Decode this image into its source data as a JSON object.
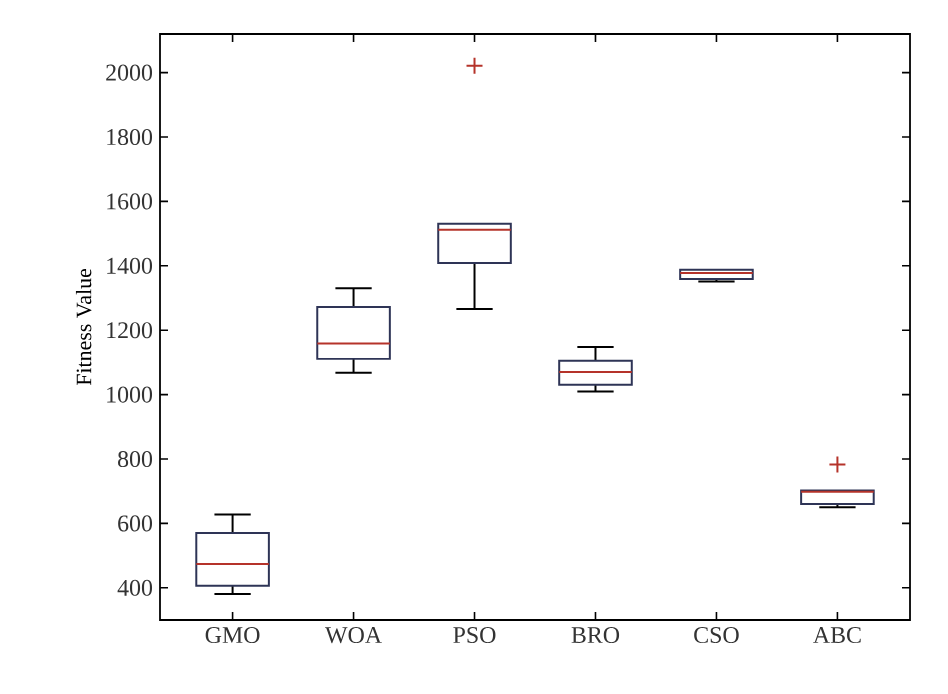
{
  "chart_data": {
    "type": "box",
    "ylabel": "Fitness Value",
    "categories": [
      "GMO",
      "WOA",
      "PSO",
      "BRO",
      "CSO",
      "ABC"
    ],
    "boxes": [
      {
        "low": 381,
        "q1": 406,
        "median": 474,
        "q3": 570,
        "high": 628
      },
      {
        "low": 1068,
        "q1": 1111,
        "median": 1159,
        "q3": 1272,
        "high": 1330
      },
      {
        "low": 1266,
        "q1": 1409,
        "median": 1512,
        "q3": 1531,
        "high": 1531,
        "outliers": [
          2021
        ]
      },
      {
        "low": 1010,
        "q1": 1031,
        "median": 1070,
        "q3": 1105,
        "high": 1148
      },
      {
        "low": 1351,
        "q1": 1359,
        "median": 1378,
        "q3": 1388,
        "high": 1388
      },
      {
        "low": 650,
        "q1": 660,
        "median": 698,
        "q3": 702,
        "high": 702,
        "outliers": [
          783
        ]
      }
    ],
    "color": "#2e3456",
    "ylim": [
      300,
      2120
    ],
    "yticks": [
      400,
      600,
      800,
      1000,
      1200,
      1400,
      1600,
      1800,
      2000
    ],
    "grid": false
  }
}
